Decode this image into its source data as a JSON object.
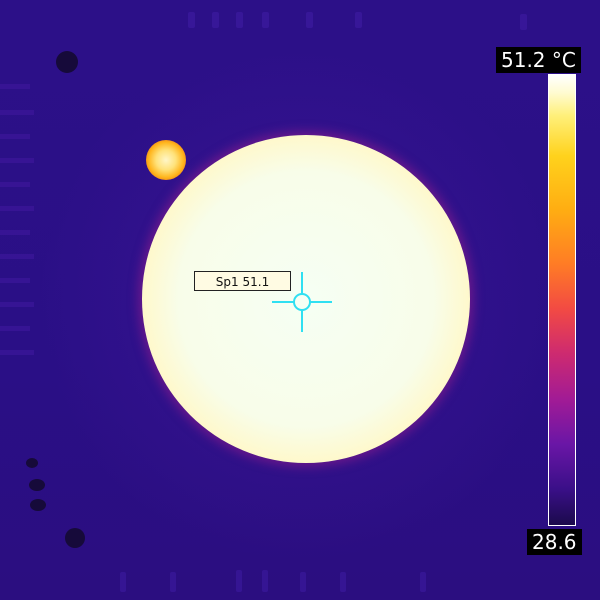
{
  "spot": {
    "label": "Sp1 51.1"
  },
  "scale": {
    "max_label": "51.2 °C",
    "min_label": "28.6",
    "palette": [
      "#ffffff",
      "#fff07a",
      "#ffd21c",
      "#ffad12",
      "#ff7c25",
      "#f24a43",
      "#cd2a70",
      "#a21b95",
      "#6a16a6",
      "#3a0f88",
      "#1b0a4c"
    ]
  },
  "colors": {
    "background": "#2a0f85",
    "crosshair": "#2fe0f2",
    "hot_core": "#f6fff4"
  }
}
